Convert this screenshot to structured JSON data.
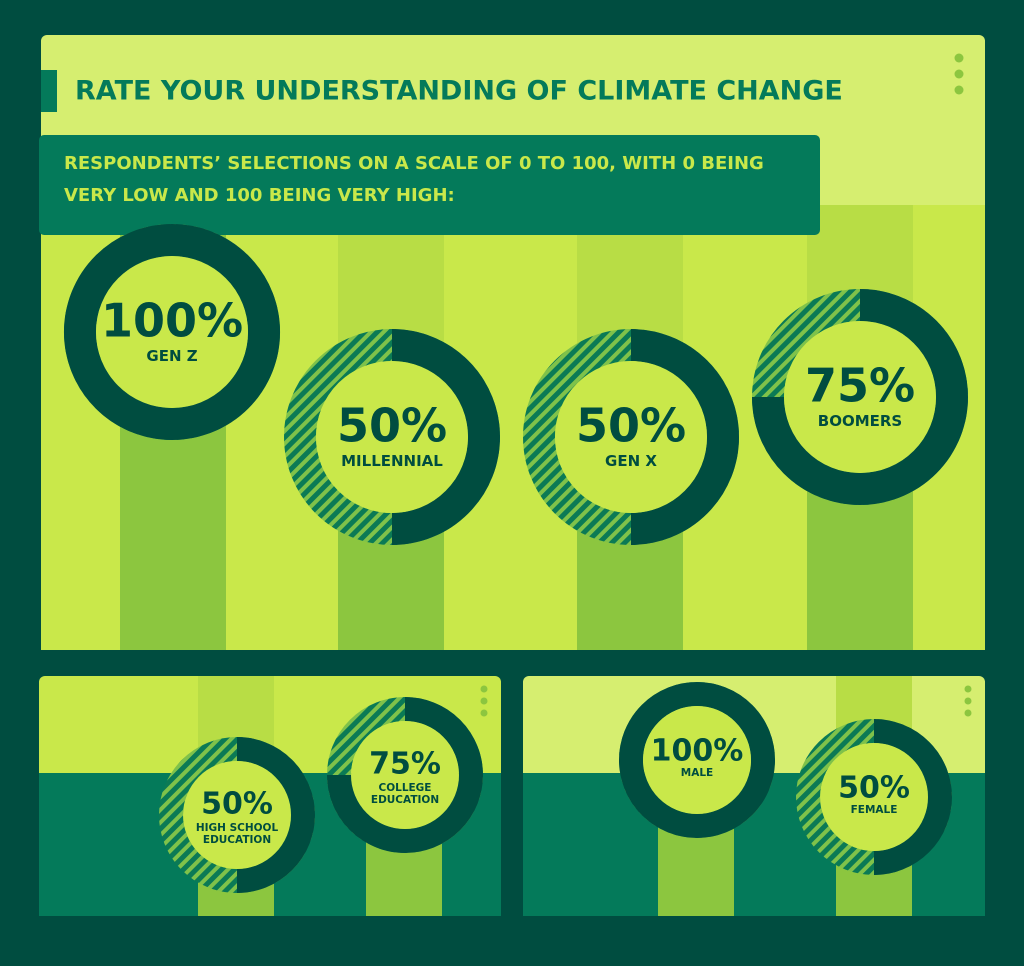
{
  "chart_data": [
    {
      "type": "donut",
      "title": "RATE YOUR UNDERSTANDING OF CLIMATE CHANGE",
      "subtitle": "RESPONDENTS’ SELECTIONS ON A SCALE OF 0 TO 100, WITH 0 BEING VERY LOW AND 100 BEING VERY HIGH:",
      "categories": [
        "GEN Z",
        "MILLENNIAL",
        "GEN X",
        "BOOMERS"
      ],
      "values": [
        100,
        50,
        50,
        75
      ],
      "value_labels": [
        "100%",
        "50%",
        "50%",
        "75%"
      ],
      "color": "#004d40"
    },
    {
      "type": "donut",
      "categories": [
        "HIGH SCHOOL EDUCATION",
        "COLLEGE EDUCATION"
      ],
      "values": [
        50,
        75
      ],
      "value_labels": [
        "50%",
        "75%"
      ],
      "color": "#004d40"
    },
    {
      "type": "donut",
      "categories": [
        "MALE",
        "FEMALE"
      ],
      "values": [
        100,
        50
      ],
      "value_labels": [
        "100%",
        "50%"
      ],
      "color": "#004d40"
    }
  ]
}
